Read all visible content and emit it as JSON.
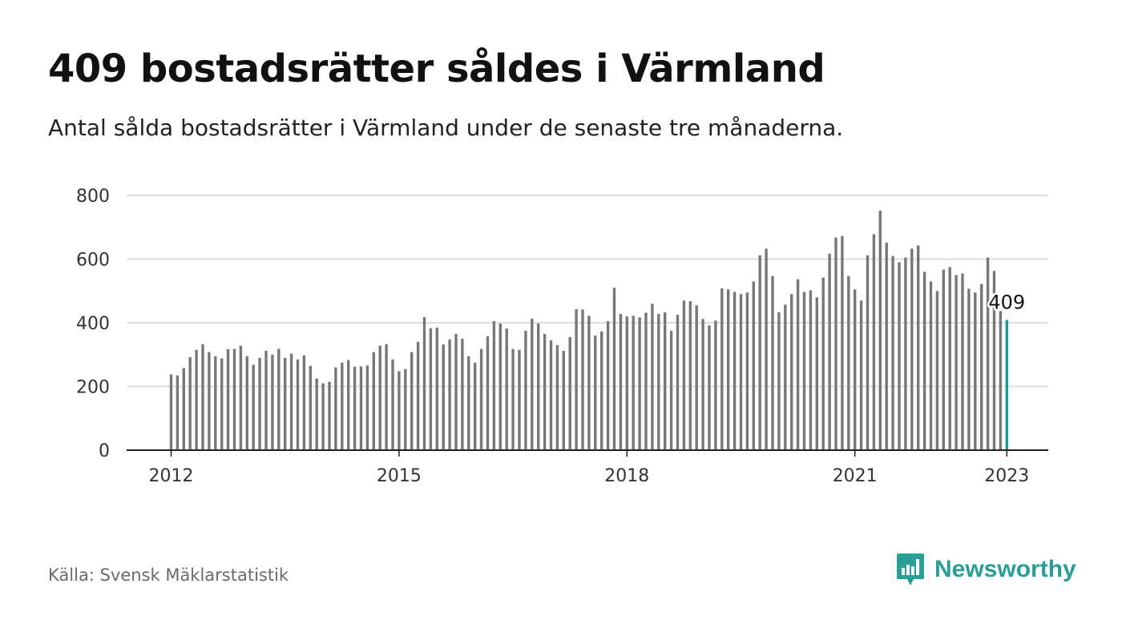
{
  "header": {
    "title": "409 bostadsrätter såldes i Värmland",
    "subtitle": "Antal sålda bostadsrätter i Värmland under de senaste tre månaderna."
  },
  "footer": {
    "source": "Källa: Svensk Mäklarstatistik",
    "brand": "Newsworthy",
    "brand_icon": "bar-chart-speech-bubble-icon"
  },
  "colors": {
    "bar": "#77767b",
    "highlight": "#1a9c92",
    "grid": "#dddddd",
    "axis": "#222222",
    "brand": "#2a9d94"
  },
  "chart_data": {
    "type": "bar",
    "title": "",
    "xlabel": "",
    "ylabel": "",
    "ylim": [
      0,
      800
    ],
    "yticks": [
      0,
      200,
      400,
      600,
      800
    ],
    "x_tick_labels": [
      "2012",
      "2015",
      "2018",
      "2021",
      "2023"
    ],
    "grid": true,
    "categories": [
      "2012-01",
      "2012-02",
      "2012-03",
      "2012-04",
      "2012-05",
      "2012-06",
      "2012-07",
      "2012-08",
      "2012-09",
      "2012-10",
      "2012-11",
      "2012-12",
      "2013-01",
      "2013-02",
      "2013-03",
      "2013-04",
      "2013-05",
      "2013-06",
      "2013-07",
      "2013-08",
      "2013-09",
      "2013-10",
      "2013-11",
      "2013-12",
      "2014-01",
      "2014-02",
      "2014-03",
      "2014-04",
      "2014-05",
      "2014-06",
      "2014-07",
      "2014-08",
      "2014-09",
      "2014-10",
      "2014-11",
      "2014-12",
      "2015-01",
      "2015-02",
      "2015-03",
      "2015-04",
      "2015-05",
      "2015-06",
      "2015-07",
      "2015-08",
      "2015-09",
      "2015-10",
      "2015-11",
      "2015-12",
      "2016-01",
      "2016-02",
      "2016-03",
      "2016-04",
      "2016-05",
      "2016-06",
      "2016-07",
      "2016-08",
      "2016-09",
      "2016-10",
      "2016-11",
      "2016-12",
      "2017-01",
      "2017-02",
      "2017-03",
      "2017-04",
      "2017-05",
      "2017-06",
      "2017-07",
      "2017-08",
      "2017-09",
      "2017-10",
      "2017-11",
      "2017-12",
      "2018-01",
      "2018-02",
      "2018-03",
      "2018-04",
      "2018-05",
      "2018-06",
      "2018-07",
      "2018-08",
      "2018-09",
      "2018-10",
      "2018-11",
      "2018-12",
      "2019-01",
      "2019-02",
      "2019-03",
      "2019-04",
      "2019-05",
      "2019-06",
      "2019-07",
      "2019-08",
      "2019-09",
      "2019-10",
      "2019-11",
      "2019-12",
      "2020-01",
      "2020-02",
      "2020-03",
      "2020-04",
      "2020-05",
      "2020-06",
      "2020-07",
      "2020-08",
      "2020-09",
      "2020-10",
      "2020-11",
      "2020-12",
      "2021-01",
      "2021-02",
      "2021-03",
      "2021-04",
      "2021-05",
      "2021-06",
      "2021-07",
      "2021-08",
      "2021-09",
      "2021-10",
      "2021-11",
      "2021-12",
      "2022-01",
      "2022-02",
      "2022-03",
      "2022-04",
      "2022-05",
      "2022-06",
      "2022-07",
      "2022-08",
      "2022-09",
      "2022-10",
      "2022-11",
      "2022-12",
      "2023-01"
    ],
    "values": [
      238,
      235,
      258,
      292,
      315,
      333,
      308,
      295,
      288,
      317,
      318,
      328,
      295,
      268,
      290,
      312,
      300,
      318,
      290,
      303,
      285,
      298,
      265,
      225,
      210,
      215,
      260,
      275,
      283,
      262,
      263,
      266,
      308,
      328,
      333,
      285,
      248,
      255,
      308,
      340,
      418,
      383,
      385,
      332,
      348,
      365,
      350,
      295,
      275,
      318,
      358,
      405,
      398,
      382,
      318,
      315,
      375,
      413,
      398,
      365,
      345,
      330,
      312,
      355,
      443,
      442,
      422,
      360,
      373,
      405,
      510,
      428,
      420,
      422,
      417,
      432,
      460,
      428,
      433,
      375,
      425,
      470,
      468,
      455,
      412,
      392,
      407,
      508,
      505,
      497,
      490,
      495,
      530,
      612,
      633,
      547,
      433,
      457,
      490,
      537,
      497,
      502,
      480,
      542,
      617,
      668,
      672,
      547,
      505,
      470,
      612,
      678,
      752,
      652,
      610,
      590,
      605,
      633,
      643,
      560,
      530,
      500,
      567,
      575,
      550,
      555,
      507,
      495,
      522,
      605,
      563,
      437,
      409
    ],
    "highlight": {
      "category": "2023-01",
      "value": 409,
      "label": "409"
    }
  }
}
